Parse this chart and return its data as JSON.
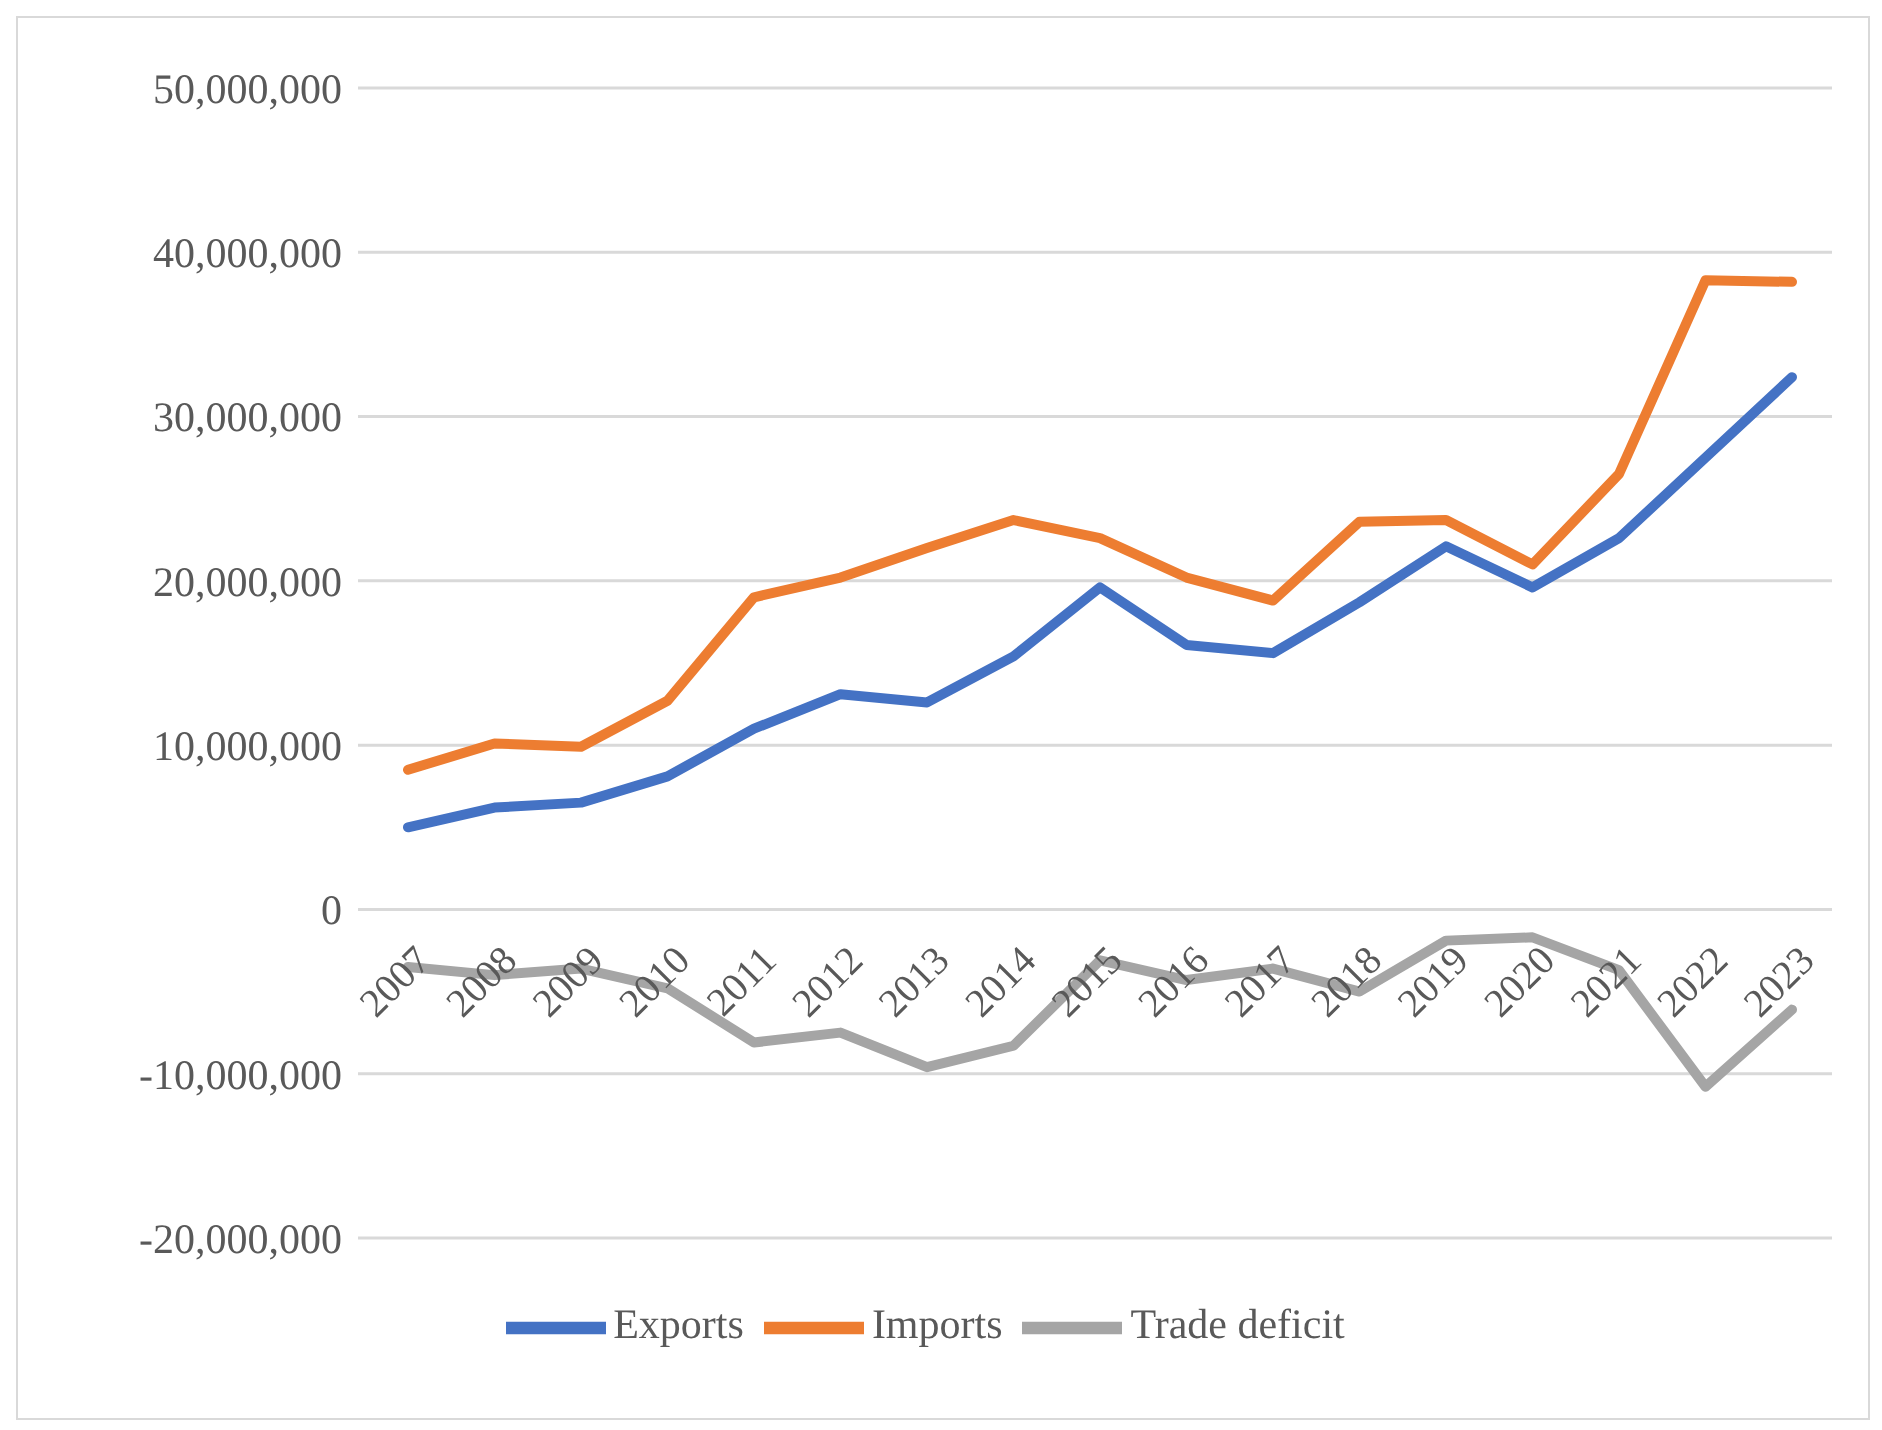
{
  "chart_data": {
    "type": "line",
    "categories": [
      "2007",
      "2008",
      "2009",
      "2010",
      "2011",
      "2012",
      "2013",
      "2014",
      "2015",
      "2016",
      "2017",
      "2018",
      "2019",
      "2020",
      "2021",
      "2022",
      "2023"
    ],
    "series": [
      {
        "name": "Exports",
        "color": "#4472c4",
        "values": [
          5000000,
          6200000,
          6500000,
          8100000,
          11000000,
          13100000,
          12600000,
          15400000,
          19600000,
          16100000,
          15600000,
          18700000,
          22100000,
          19600000,
          22600000,
          27500000,
          32400000
        ]
      },
      {
        "name": "Imports",
        "color": "#ed7d31",
        "values": [
          8500000,
          10100000,
          9900000,
          12700000,
          19000000,
          20200000,
          22000000,
          23700000,
          22600000,
          20200000,
          18800000,
          23600000,
          23700000,
          21000000,
          26500000,
          38300000,
          38200000
        ]
      },
      {
        "name": "Trade deficit",
        "color": "#a5a5a5",
        "values": [
          -3500000,
          -4000000,
          -3600000,
          -4800000,
          -8100000,
          -7500000,
          -9600000,
          -8300000,
          -3100000,
          -4300000,
          -3600000,
          -5000000,
          -1900000,
          -1700000,
          -3700000,
          -10800000,
          -6100000
        ]
      }
    ],
    "ylim": [
      -20000000,
      50000000
    ],
    "yticks": [
      {
        "value": -20000000,
        "label": "-20,000,000"
      },
      {
        "value": -10000000,
        "label": "-10,000,000"
      },
      {
        "value": 0,
        "label": "0"
      },
      {
        "value": 10000000,
        "label": "10,000,000"
      },
      {
        "value": 20000000,
        "label": "20,000,000"
      },
      {
        "value": 30000000,
        "label": "30,000,000"
      },
      {
        "value": 40000000,
        "label": "40,000,000"
      },
      {
        "value": 50000000,
        "label": "50,000,000"
      }
    ],
    "grid": "y",
    "legend": "bottom",
    "marker": "none",
    "line_style": "solid"
  }
}
